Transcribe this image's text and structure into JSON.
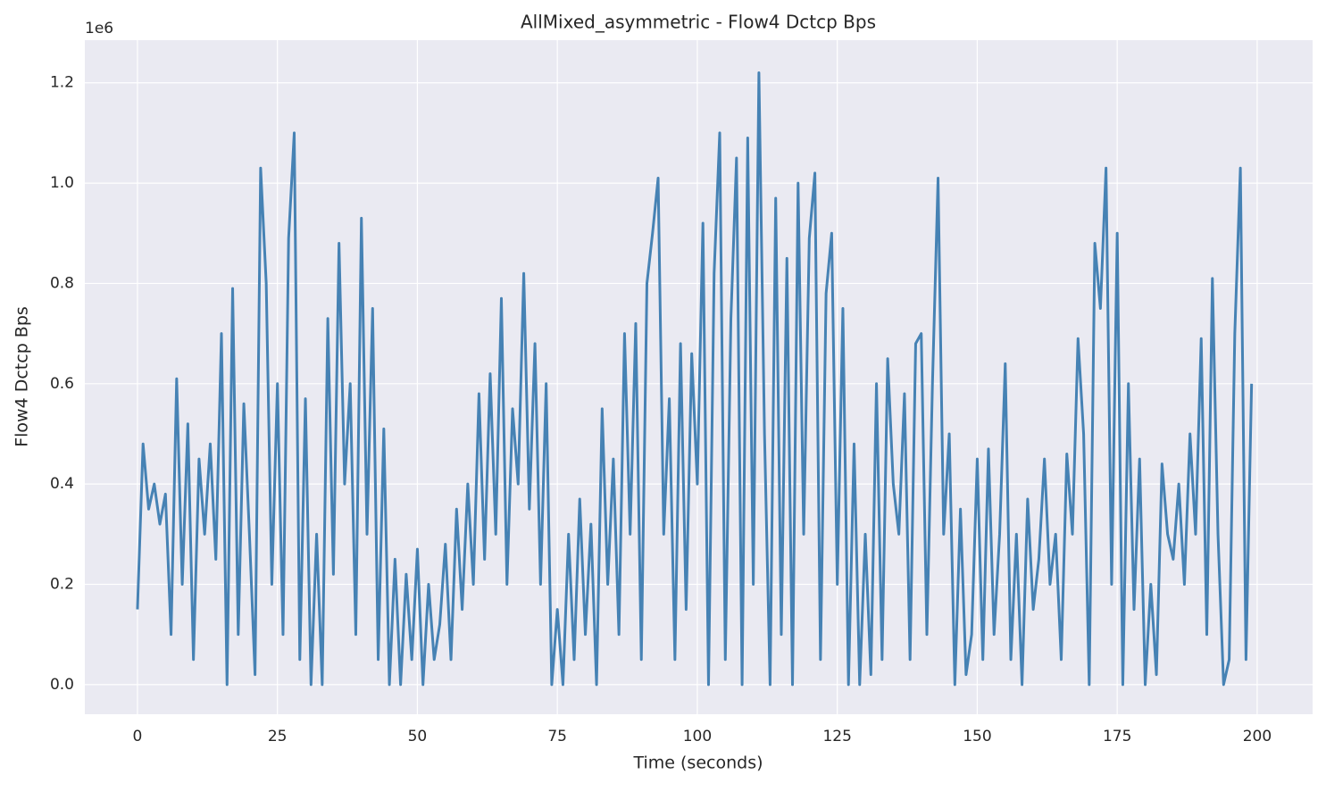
{
  "chart_data": {
    "type": "line",
    "title": "AllMixed_asymmetric - Flow4 Dctcp Bps",
    "xlabel": "Time (seconds)",
    "ylabel": "Flow4 Dctcp Bps",
    "y_offset_label": "1e6",
    "color": "#4682b4",
    "grid": true,
    "xlim": [
      -9.4,
      209.9
    ],
    "ylim": [
      -0.059,
      1.285
    ],
    "xticks": [
      0,
      25,
      50,
      75,
      100,
      125,
      150,
      175,
      200
    ],
    "yticks": [
      {
        "value": 0,
        "label": "0.0"
      },
      0.2,
      0.4,
      0.6,
      0.8,
      {
        "value": 1,
        "label": "1.0"
      },
      1.2
    ],
    "x": [
      0,
      1,
      2,
      3,
      4,
      5,
      6,
      7,
      8,
      9,
      10,
      11,
      12,
      13,
      14,
      15,
      16,
      17,
      18,
      19,
      20,
      21,
      22,
      23,
      24,
      25,
      26,
      27,
      28,
      29,
      30,
      31,
      32,
      33,
      34,
      35,
      36,
      37,
      38,
      39,
      40,
      41,
      42,
      43,
      44,
      45,
      46,
      47,
      48,
      49,
      50,
      51,
      52,
      53,
      54,
      55,
      56,
      57,
      58,
      59,
      60,
      61,
      62,
      63,
      64,
      65,
      66,
      67,
      68,
      69,
      70,
      71,
      72,
      73,
      74,
      75,
      76,
      77,
      78,
      79,
      80,
      81,
      82,
      83,
      84,
      85,
      86,
      87,
      88,
      89,
      90,
      91,
      92,
      93,
      94,
      95,
      96,
      97,
      98,
      99,
      100,
      101,
      102,
      103,
      104,
      105,
      106,
      107,
      108,
      109,
      110,
      111,
      112,
      113,
      114,
      115,
      116,
      117,
      118,
      119,
      120,
      121,
      122,
      123,
      124,
      125,
      126,
      127,
      128,
      129,
      130,
      131,
      132,
      133,
      134,
      135,
      136,
      137,
      138,
      139,
      140,
      141,
      142,
      143,
      144,
      145,
      146,
      147,
      148,
      149,
      150,
      151,
      152,
      153,
      154,
      155,
      156,
      157,
      158,
      159,
      160,
      161,
      162,
      163,
      164,
      165,
      166,
      167,
      168,
      169,
      170,
      171,
      172,
      173,
      174,
      175,
      176,
      177,
      178,
      179,
      180,
      181,
      182,
      183,
      184,
      185,
      186,
      187,
      188,
      189,
      190,
      191,
      192,
      193,
      194,
      195,
      196,
      197,
      198,
      199
    ],
    "values": [
      0.15,
      0.48,
      0.35,
      0.4,
      0.32,
      0.38,
      0.1,
      0.61,
      0.2,
      0.52,
      0.05,
      0.45,
      0.3,
      0.48,
      0.25,
      0.7,
      0.0,
      0.79,
      0.1,
      0.56,
      0.3,
      0.02,
      1.03,
      0.8,
      0.2,
      0.6,
      0.1,
      0.89,
      1.1,
      0.05,
      0.57,
      0.0,
      0.3,
      0.0,
      0.73,
      0.22,
      0.88,
      0.4,
      0.6,
      0.1,
      0.93,
      0.3,
      0.75,
      0.05,
      0.51,
      0.0,
      0.25,
      0.0,
      0.22,
      0.05,
      0.27,
      0.0,
      0.2,
      0.05,
      0.12,
      0.28,
      0.05,
      0.35,
      0.15,
      0.4,
      0.2,
      0.58,
      0.25,
      0.62,
      0.3,
      0.77,
      0.2,
      0.55,
      0.4,
      0.82,
      0.35,
      0.68,
      0.2,
      0.6,
      0.0,
      0.15,
      0.0,
      0.3,
      0.05,
      0.37,
      0.1,
      0.32,
      0.0,
      0.55,
      0.2,
      0.45,
      0.1,
      0.7,
      0.3,
      0.72,
      0.05,
      0.8,
      0.9,
      1.01,
      0.3,
      0.57,
      0.05,
      0.68,
      0.15,
      0.66,
      0.4,
      0.92,
      0.0,
      0.82,
      1.1,
      0.05,
      0.73,
      1.05,
      0.0,
      1.09,
      0.2,
      1.22,
      0.5,
      0.0,
      0.97,
      0.1,
      0.85,
      0.0,
      1.0,
      0.3,
      0.89,
      1.02,
      0.05,
      0.78,
      0.9,
      0.2,
      0.75,
      0.0,
      0.48,
      0.0,
      0.3,
      0.02,
      0.6,
      0.05,
      0.65,
      0.4,
      0.3,
      0.58,
      0.05,
      0.68,
      0.7,
      0.1,
      0.6,
      1.01,
      0.3,
      0.5,
      0.0,
      0.35,
      0.02,
      0.1,
      0.45,
      0.05,
      0.47,
      0.1,
      0.3,
      0.64,
      0.05,
      0.3,
      0.0,
      0.37,
      0.15,
      0.25,
      0.45,
      0.2,
      0.3,
      0.05,
      0.46,
      0.3,
      0.69,
      0.5,
      0.0,
      0.88,
      0.75,
      1.03,
      0.2,
      0.9,
      0.0,
      0.6,
      0.15,
      0.45,
      0.0,
      0.2,
      0.02,
      0.44,
      0.3,
      0.25,
      0.4,
      0.2,
      0.5,
      0.3,
      0.69,
      0.1,
      0.81,
      0.3,
      0.0,
      0.05,
      0.7,
      1.03,
      0.05,
      0.6
    ]
  }
}
